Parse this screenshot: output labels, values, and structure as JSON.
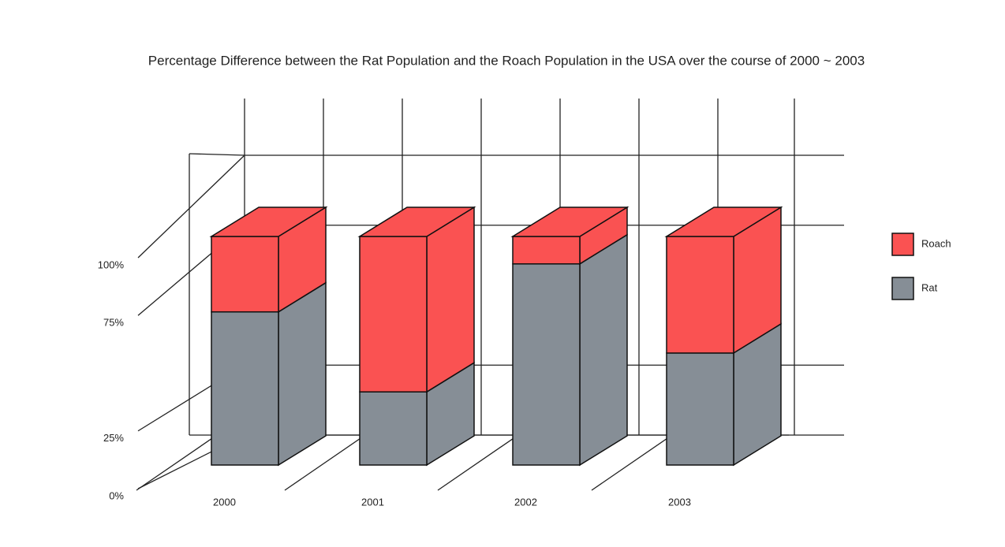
{
  "chart_data": {
    "type": "bar3d_stacked",
    "title": "Percentage Difference between the Rat Population and the Roach Population in the USA over the course of 2000 ~ 2003",
    "categories": [
      "2000",
      "2001",
      "2002",
      "2003"
    ],
    "series": [
      {
        "name": "Rat",
        "color": "#868e96",
        "values": [
          67,
          32,
          88,
          49
        ]
      },
      {
        "name": "Roach",
        "color": "#fa5252",
        "values": [
          33,
          68,
          12,
          51
        ]
      }
    ],
    "ylim": [
      0,
      100
    ],
    "yticks": [
      {
        "value": 0,
        "label": "0%"
      },
      {
        "value": 25,
        "label": "25%"
      },
      {
        "value": 75,
        "label": "75%"
      },
      {
        "value": 100,
        "label": "100%"
      }
    ],
    "grid": true,
    "legend": "right"
  }
}
